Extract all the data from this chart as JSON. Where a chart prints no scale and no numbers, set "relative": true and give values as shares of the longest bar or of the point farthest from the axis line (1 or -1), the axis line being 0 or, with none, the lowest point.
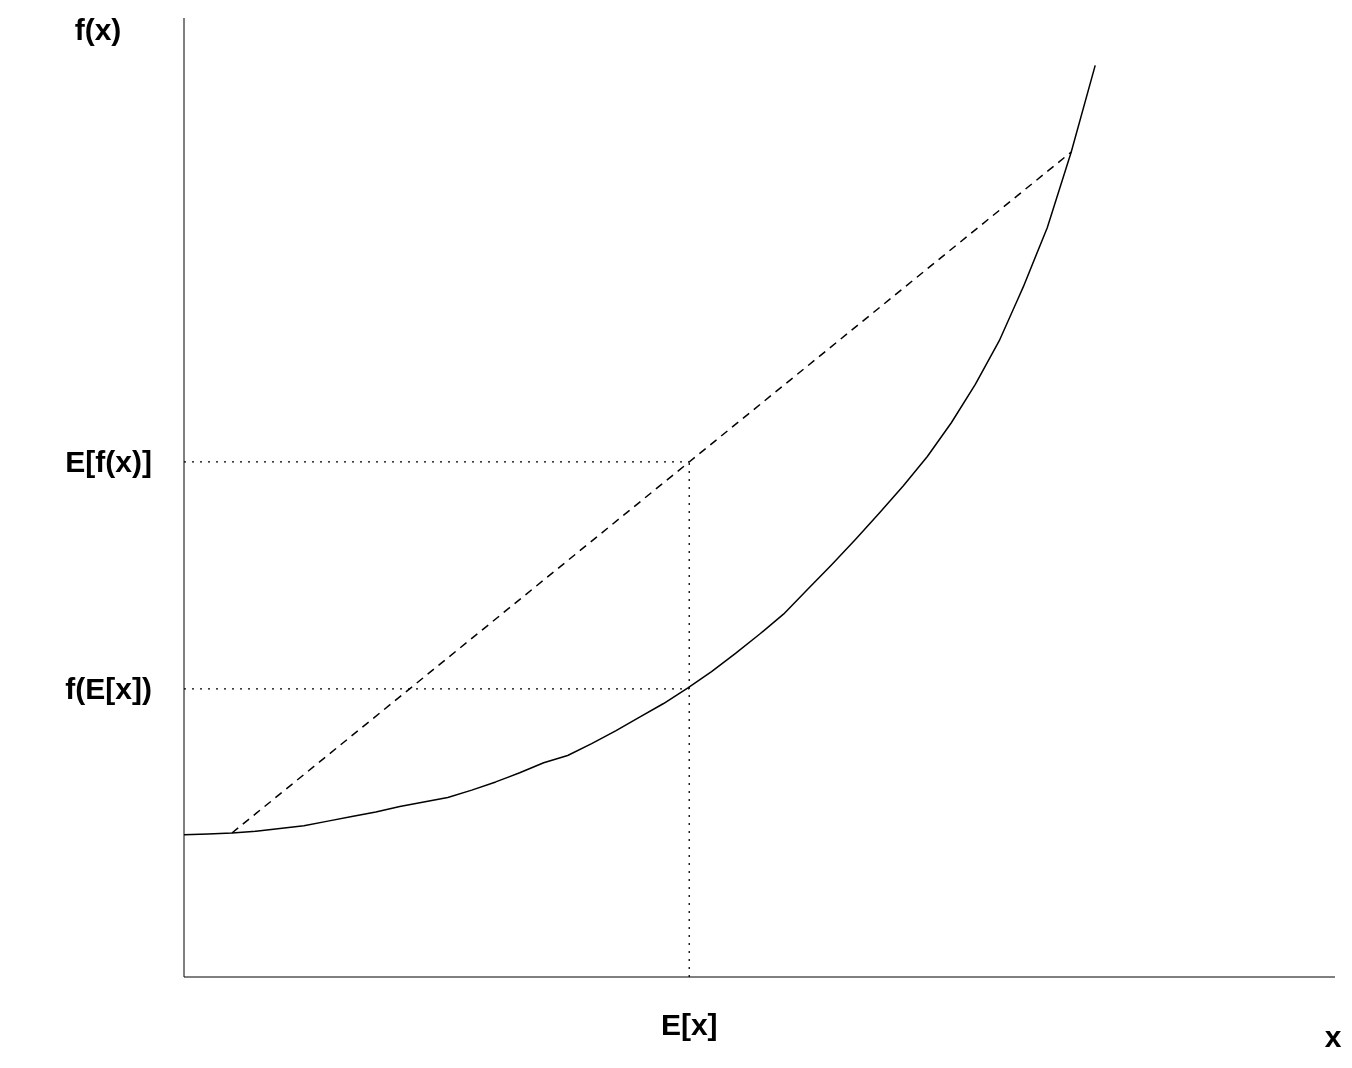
{
  "chart_data": {
    "type": "line",
    "relative": true,
    "xlabel": "x",
    "ylabel": "f(x)",
    "marker": "none",
    "categories": [
      null,
      null,
      null,
      null,
      null,
      null,
      null,
      null,
      null,
      null,
      null,
      null,
      null,
      null,
      null,
      null,
      null,
      null,
      null,
      null,
      null,
      null,
      null,
      null,
      null,
      null,
      null,
      null,
      null,
      null,
      null,
      null,
      null,
      null,
      null,
      null,
      null,
      null,
      null,
      null,
      null,
      null,
      null,
      null,
      null,
      null,
      null,
      null,
      null
    ],
    "ref_lines": [
      {
        "axis": "x",
        "value": "E[x]",
        "color": "#000000",
        "line_style": "dotted"
      },
      {
        "axis": "y",
        "value": 0.565,
        "label": "E[f(x)]",
        "color": "#000000",
        "line_style": "dotted"
      },
      {
        "axis": "y",
        "value": 0.316,
        "label": "f(E[x])",
        "color": "#000000",
        "line_style": "dotted"
      }
    ],
    "series": [
      {
        "color": "#000000",
        "line_style": "solid",
        "values": [
          0.156,
          0.157,
          0.158,
          0.16,
          0.163,
          0.166,
          0.171,
          0.176,
          0.181,
          0.187,
          0.192,
          0.197,
          0.205,
          0.214,
          0.224,
          0.235,
          0.243,
          0.256,
          0.27,
          0.285,
          0.3,
          0.317,
          0.335,
          0.355,
          0.376,
          0.398,
          0.425,
          0.452,
          0.48,
          0.509,
          0.539,
          0.571,
          0.608,
          0.65,
          0.698,
          0.757,
          0.822,
          0.905,
          1.0,
          null,
          null,
          null,
          null,
          null,
          null,
          null,
          null,
          null,
          null
        ]
      },
      {
        "color": "#000000",
        "line_style": "dashed",
        "values": [
          null,
          null,
          0.158,
          null,
          null,
          null,
          null,
          null,
          null,
          null,
          null,
          null,
          null,
          null,
          null,
          null,
          null,
          null,
          null,
          null,
          null,
          null,
          null,
          null,
          null,
          null,
          null,
          null,
          null,
          null,
          null,
          null,
          null,
          null,
          null,
          null,
          null,
          0.905,
          null,
          null,
          null,
          null,
          null,
          null,
          null,
          null,
          null,
          null,
          null
        ]
      }
    ]
  }
}
